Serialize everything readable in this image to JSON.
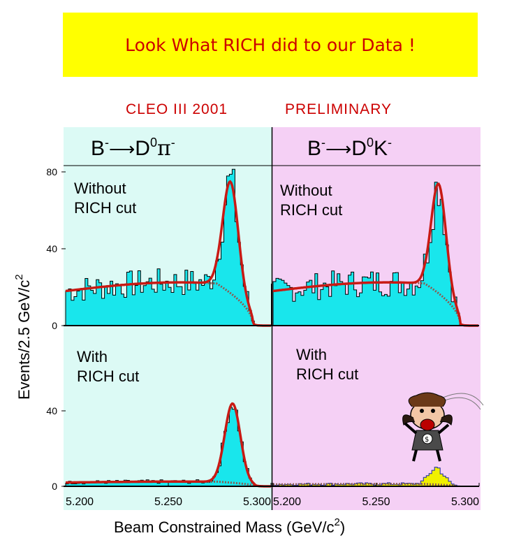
{
  "header": {
    "banner_title": "Look What RICH did to our Data !",
    "experiment_label": "CLEO III 2001",
    "status_label": "PRELIMINARY"
  },
  "colors": {
    "banner_bg": "#ffff00",
    "title_red": "#cc0000",
    "left_bg": "#dcfaf5",
    "right_bg": "#f5d0f5",
    "fill_cyan": "#19e6ec",
    "fit_red": "#c81a14",
    "fill_yellow": "#f0f000",
    "hist_blue": "#1a2aa0"
  },
  "labels": {
    "decay_left": {
      "b": "B",
      "arrow": "⟶",
      "d": "D",
      "sup0": "0",
      "sup_minus": "-",
      "pi": "π"
    },
    "decay_right": {
      "b": "B",
      "arrow": "⟶",
      "d": "D",
      "sup0": "0",
      "sup_minus": "-",
      "k": "K"
    },
    "without_line1": "Without",
    "without_line2": "RICH cut",
    "with_line1": "With",
    "with_line2": "RICH cut",
    "ylabel_main": "Events/2.5 GeV/c",
    "ylabel_sup": "2",
    "xlabel_main": "Beam Constrained Mass (GeV/c",
    "xlabel_sup": "2",
    "xlabel_end": ")"
  },
  "chart_data": [
    {
      "type": "area",
      "panel": "top-left",
      "x_range": [
        5.2,
        5.3
      ],
      "ylim": [
        0,
        80
      ],
      "yticks": [
        0,
        40,
        80
      ],
      "xticks": [],
      "signal_peak": {
        "mean": 5.28,
        "sigma": 0.0038,
        "height": 58
      },
      "background_level": 18,
      "approx_peak_counts": 81
    },
    {
      "type": "area",
      "panel": "top-right",
      "x_range": [
        5.2,
        5.3
      ],
      "ylim": [
        0,
        80
      ],
      "yticks": [],
      "xticks": [],
      "signal_peak": {
        "mean": 5.28,
        "sigma": 0.0036,
        "height": 57
      },
      "background_level": 18,
      "approx_peak_counts": 82
    },
    {
      "type": "area",
      "panel": "bottom-left",
      "x_range": [
        5.2,
        5.3
      ],
      "ylim": [
        0,
        80
      ],
      "yticks": [
        0,
        40
      ],
      "xticks": [
        "5.200",
        "5.250",
        "5.300"
      ],
      "signal_peak": {
        "mean": 5.28,
        "sigma": 0.0038,
        "height": 42
      },
      "background_level": 2,
      "approx_peak_counts": 46
    },
    {
      "type": "area",
      "panel": "bottom-right",
      "x_range": [
        5.2,
        5.3
      ],
      "ylim": [
        0,
        80
      ],
      "yticks": [],
      "xticks": [
        "5.200",
        "5.250",
        "5.300"
      ],
      "signal_peak": {
        "mean": 5.28,
        "sigma": 0.0035,
        "height": 9
      },
      "background_level": 1,
      "approx_peak_counts": 12
    }
  ]
}
